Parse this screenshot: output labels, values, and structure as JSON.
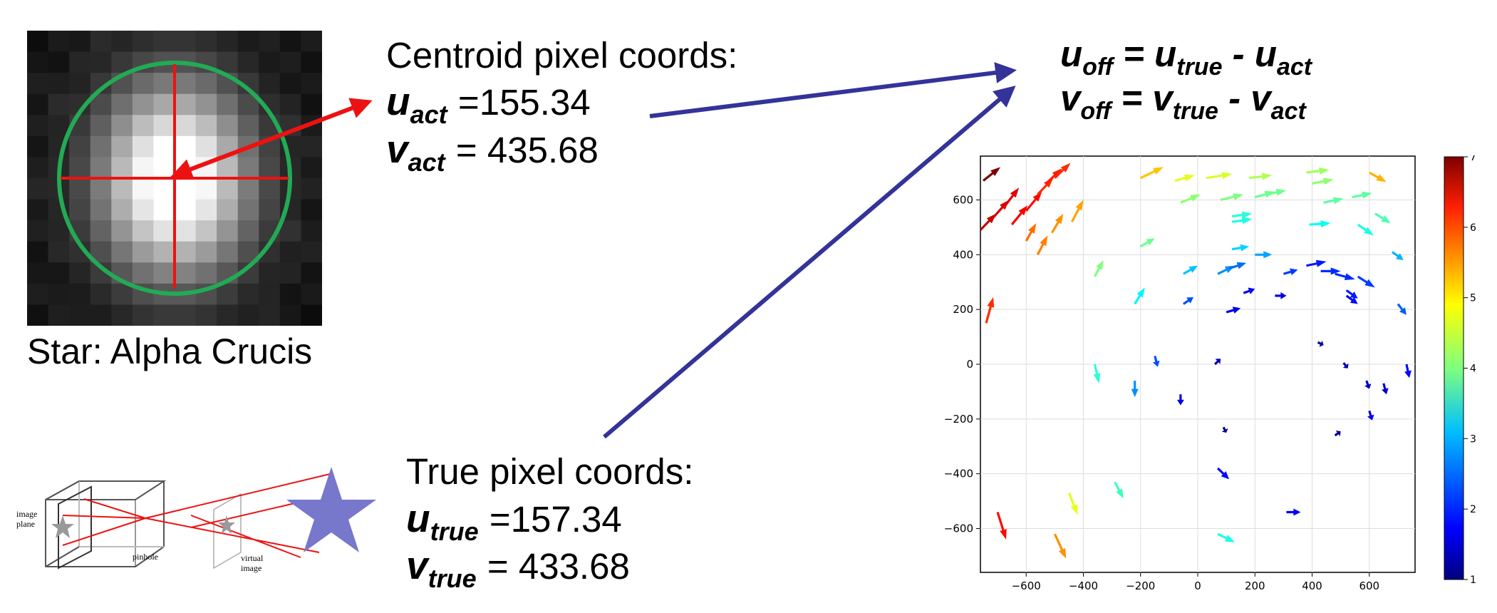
{
  "star_label": "Star: Alpha Crucis",
  "centroid": {
    "heading": "Centroid pixel coords:",
    "u_sym": "u",
    "u_sub": "act",
    "u_value": "=155.34",
    "v_sym": "v",
    "v_sub": "act",
    "v_value": "= 435.68"
  },
  "truth": {
    "heading": "True pixel coords:",
    "u_sym": "u",
    "u_sub": "true",
    "u_value": "=157.34",
    "v_sym": "v",
    "v_sub": "true",
    "v_value": "= 433.68"
  },
  "formula": {
    "line1": {
      "lhs": "u",
      "lhs_sub": "off",
      "eq": " = ",
      "a": "u",
      "a_sub": "true",
      "op": " - ",
      "b": "u",
      "b_sub": "act"
    },
    "line2": {
      "lhs": "v",
      "lhs_sub": "off",
      "eq": " = ",
      "a": "v",
      "a_sub": "true",
      "op": " - ",
      "b": "v",
      "b_sub": "act"
    }
  },
  "pinhole_labels": {
    "image_plane_1": "image",
    "image_plane_2": "plane",
    "pinhole": "pinhole",
    "virtual_1": "virtual",
    "virtual_2": "image"
  },
  "colors": {
    "crosshair": "#ee1111",
    "circle": "#22aa55",
    "navy_arrow": "#333399",
    "big_star": "#7777cc",
    "gray_star": "#999999"
  },
  "chart_data": {
    "type": "quiver",
    "xlim": [
      -760,
      760
    ],
    "ylim": [
      -760,
      760
    ],
    "x_ticks": [
      -600,
      -400,
      -200,
      0,
      200,
      400,
      600
    ],
    "y_ticks": [
      600,
      400,
      200,
      0,
      -200,
      -400,
      -600
    ],
    "grid": true,
    "colorbar": {
      "min": 1,
      "max": 7,
      "ticks": [
        1,
        2,
        3,
        4,
        5,
        6,
        7
      ],
      "colormap": "jet"
    },
    "vectors": [
      {
        "x": -750,
        "y": 670,
        "u": 60,
        "v": 50,
        "m": 7.0
      },
      {
        "x": -760,
        "y": 490,
        "u": 55,
        "v": 60,
        "m": 6.6
      },
      {
        "x": -720,
        "y": 530,
        "u": 60,
        "v": 70,
        "m": 6.5
      },
      {
        "x": -680,
        "y": 570,
        "u": 55,
        "v": 75,
        "m": 6.4
      },
      {
        "x": -650,
        "y": 510,
        "u": 55,
        "v": 70,
        "m": 6.3
      },
      {
        "x": -600,
        "y": 560,
        "u": 55,
        "v": 70,
        "m": 6.2
      },
      {
        "x": -560,
        "y": 620,
        "u": 55,
        "v": 60,
        "m": 6.0
      },
      {
        "x": -530,
        "y": 660,
        "u": 55,
        "v": 55,
        "m": 6.1
      },
      {
        "x": -500,
        "y": 680,
        "u": 55,
        "v": 55,
        "m": 6.0
      },
      {
        "x": -600,
        "y": 450,
        "u": 35,
        "v": 65,
        "m": 5.6
      },
      {
        "x": -560,
        "y": 400,
        "u": 35,
        "v": 70,
        "m": 5.5
      },
      {
        "x": -510,
        "y": 480,
        "u": 40,
        "v": 70,
        "m": 5.4
      },
      {
        "x": -440,
        "y": 520,
        "u": 40,
        "v": 80,
        "m": 5.3
      },
      {
        "x": -740,
        "y": 150,
        "u": 25,
        "v": 95,
        "m": 6.0
      },
      {
        "x": -200,
        "y": 680,
        "u": 80,
        "v": 40,
        "m": 5.1
      },
      {
        "x": -80,
        "y": 670,
        "u": 70,
        "v": 20,
        "m": 4.6
      },
      {
        "x": 30,
        "y": 680,
        "u": 90,
        "v": 15,
        "m": 4.5
      },
      {
        "x": 180,
        "y": 680,
        "u": 80,
        "v": 10,
        "m": 4.3
      },
      {
        "x": 380,
        "y": 700,
        "u": 80,
        "v": 10,
        "m": 4.2
      },
      {
        "x": 400,
        "y": 660,
        "u": 75,
        "v": 15,
        "m": 4.1
      },
      {
        "x": 600,
        "y": 700,
        "u": 60,
        "v": -35,
        "m": 5.2
      },
      {
        "x": -60,
        "y": 590,
        "u": 70,
        "v": 30,
        "m": 4.1
      },
      {
        "x": 80,
        "y": 600,
        "u": 80,
        "v": 20,
        "m": 4.0
      },
      {
        "x": 200,
        "y": 610,
        "u": 70,
        "v": 20,
        "m": 3.9
      },
      {
        "x": 240,
        "y": 620,
        "u": 70,
        "v": 15,
        "m": 3.9
      },
      {
        "x": 440,
        "y": 590,
        "u": 70,
        "v": 15,
        "m": 3.8
      },
      {
        "x": 540,
        "y": 610,
        "u": 70,
        "v": 15,
        "m": 3.8
      },
      {
        "x": 620,
        "y": 550,
        "u": 55,
        "v": -35,
        "m": 3.7
      },
      {
        "x": 120,
        "y": 540,
        "u": 70,
        "v": 10,
        "m": 3.5
      },
      {
        "x": 120,
        "y": 520,
        "u": 70,
        "v": 10,
        "m": 3.4
      },
      {
        "x": 390,
        "y": 510,
        "u": 75,
        "v": 5,
        "m": 3.3
      },
      {
        "x": 560,
        "y": 510,
        "u": 55,
        "v": -40,
        "m": 3.4
      },
      {
        "x": -200,
        "y": 430,
        "u": 50,
        "v": 30,
        "m": 3.9
      },
      {
        "x": 120,
        "y": 420,
        "u": 60,
        "v": 10,
        "m": 3.0
      },
      {
        "x": 200,
        "y": 400,
        "u": 60,
        "v": 0,
        "m": 2.7
      },
      {
        "x": -360,
        "y": 320,
        "u": 30,
        "v": 60,
        "m": 4.0
      },
      {
        "x": -220,
        "y": 220,
        "u": 35,
        "v": 60,
        "m": 3.2
      },
      {
        "x": -50,
        "y": 330,
        "u": 50,
        "v": 30,
        "m": 2.9
      },
      {
        "x": 70,
        "y": 330,
        "u": 60,
        "v": 30,
        "m": 2.6
      },
      {
        "x": 110,
        "y": 350,
        "u": 60,
        "v": 20,
        "m": 2.4
      },
      {
        "x": 300,
        "y": 330,
        "u": 50,
        "v": 15,
        "m": 2.1
      },
      {
        "x": 380,
        "y": 360,
        "u": 70,
        "v": 15,
        "m": 1.9
      },
      {
        "x": 430,
        "y": 340,
        "u": 70,
        "v": 0,
        "m": 2.0
      },
      {
        "x": 480,
        "y": 330,
        "u": 70,
        "v": -20,
        "m": 2.0
      },
      {
        "x": 560,
        "y": 320,
        "u": 60,
        "v": -40,
        "m": 2.1
      },
      {
        "x": 520,
        "y": 270,
        "u": 40,
        "v": -30,
        "m": 1.9
      },
      {
        "x": 520,
        "y": 250,
        "u": 40,
        "v": -30,
        "m": 1.8
      },
      {
        "x": 680,
        "y": 410,
        "u": 40,
        "v": -30,
        "m": 2.8
      },
      {
        "x": 700,
        "y": 220,
        "u": 30,
        "v": -40,
        "m": 2.3
      },
      {
        "x": -50,
        "y": 220,
        "u": 35,
        "v": 25,
        "m": 2.2
      },
      {
        "x": 100,
        "y": 190,
        "u": 50,
        "v": 15,
        "m": 1.6
      },
      {
        "x": 160,
        "y": 260,
        "u": 40,
        "v": 15,
        "m": 1.7
      },
      {
        "x": 270,
        "y": 250,
        "u": 40,
        "v": 0,
        "m": 1.6
      },
      {
        "x": 420,
        "y": 80,
        "u": 20,
        "v": -10,
        "m": 1.2
      },
      {
        "x": 510,
        "y": 5,
        "u": 15,
        "v": -20,
        "m": 1.3
      },
      {
        "x": 60,
        "y": 0,
        "u": 20,
        "v": 20,
        "m": 1.3
      },
      {
        "x": 590,
        "y": -60,
        "u": 10,
        "v": -30,
        "m": 1.4
      },
      {
        "x": 650,
        "y": -70,
        "u": 10,
        "v": -40,
        "m": 1.5
      },
      {
        "x": 730,
        "y": 0,
        "u": 10,
        "v": -50,
        "m": 1.8
      },
      {
        "x": 600,
        "y": -170,
        "u": 10,
        "v": -35,
        "m": 1.6
      },
      {
        "x": -150,
        "y": 30,
        "u": 10,
        "v": -40,
        "m": 2.2
      },
      {
        "x": -360,
        "y": 0,
        "u": 15,
        "v": -70,
        "m": 3.5
      },
      {
        "x": -220,
        "y": -60,
        "u": 0,
        "v": -60,
        "m": 2.6
      },
      {
        "x": -60,
        "y": -110,
        "u": 0,
        "v": -40,
        "m": 1.6
      },
      {
        "x": 90,
        "y": -230,
        "u": 10,
        "v": -20,
        "m": 1.2
      },
      {
        "x": 480,
        "y": -260,
        "u": 20,
        "v": 15,
        "m": 1.1
      },
      {
        "x": 70,
        "y": -380,
        "u": 40,
        "v": -40,
        "m": 1.8
      },
      {
        "x": 310,
        "y": -540,
        "u": 50,
        "v": 0,
        "m": 1.7
      },
      {
        "x": -290,
        "y": -430,
        "u": 30,
        "v": -60,
        "m": 3.6
      },
      {
        "x": -450,
        "y": -470,
        "u": 30,
        "v": -80,
        "m": 4.6
      },
      {
        "x": 70,
        "y": -620,
        "u": 60,
        "v": -30,
        "m": 3.4
      },
      {
        "x": -700,
        "y": -540,
        "u": 30,
        "v": -100,
        "m": 6.2
      },
      {
        "x": -500,
        "y": -620,
        "u": 40,
        "v": -90,
        "m": 5.4
      }
    ]
  }
}
